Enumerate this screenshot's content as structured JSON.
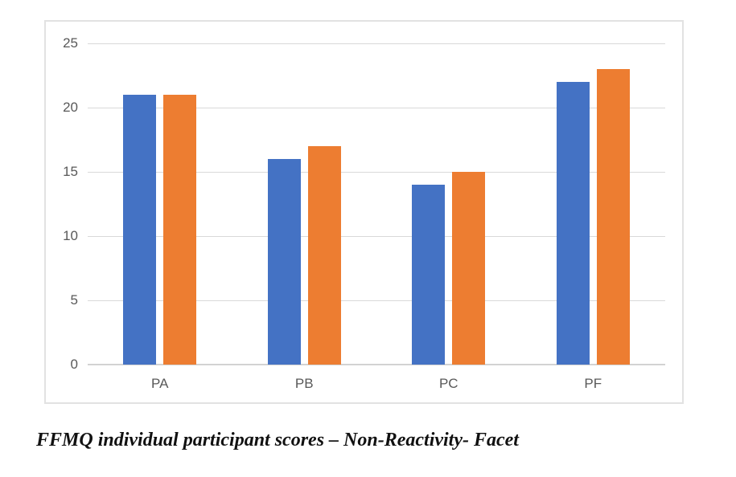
{
  "caption": "FFMQ individual participant scores – Non-Reactivity- Facet",
  "chart_data": {
    "type": "bar",
    "title": "",
    "categories": [
      "PA",
      "PB",
      "PC",
      "PF"
    ],
    "series": [
      {
        "name": "Blue",
        "color": "#4472C4",
        "values": [
          21,
          16,
          14,
          22
        ]
      },
      {
        "name": "Orange",
        "color": "#ED7D31",
        "values": [
          21,
          17,
          15,
          23
        ]
      }
    ],
    "ylim": [
      0,
      25
    ],
    "yticks": [
      0,
      5,
      10,
      15,
      20,
      25
    ],
    "grid": true,
    "legend_position": "none",
    "gridline_color": "#d9d9d9",
    "axis_line_color": "#d2d2d2",
    "tick_label_color": "#595959",
    "plot_background": "#ffffff"
  }
}
